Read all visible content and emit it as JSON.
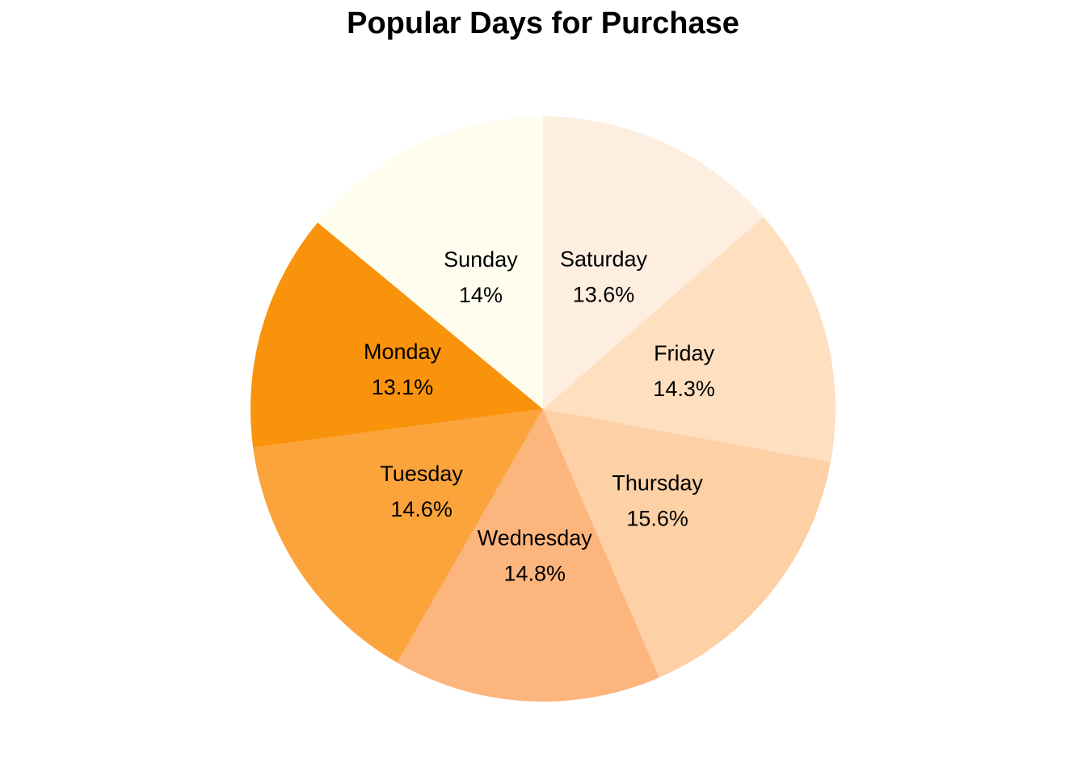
{
  "chart_data": {
    "type": "pie",
    "title": "Popular Days for Purchase",
    "slices": [
      {
        "label": "Saturday",
        "value": 13.6,
        "display": "13.6%",
        "color": "#FEEEE0"
      },
      {
        "label": "Friday",
        "value": 14.3,
        "display": "14.3%",
        "color": "#FEDFC0"
      },
      {
        "label": "Thursday",
        "value": 15.6,
        "display": "15.6%",
        "color": "#FED0A6"
      },
      {
        "label": "Wednesday",
        "value": 14.8,
        "display": "14.8%",
        "color": "#FDB57E"
      },
      {
        "label": "Tuesday",
        "value": 14.6,
        "display": "14.6%",
        "color": "#FBA43B"
      },
      {
        "label": "Monday",
        "value": 13.1,
        "display": "13.1%",
        "color": "#FA930C"
      },
      {
        "label": "Sunday",
        "value": 14.0,
        "display": "14%",
        "color": "#FFFEEE"
      }
    ],
    "start_angle": "12 o'clock",
    "direction": "clockwise",
    "legend": "none"
  }
}
